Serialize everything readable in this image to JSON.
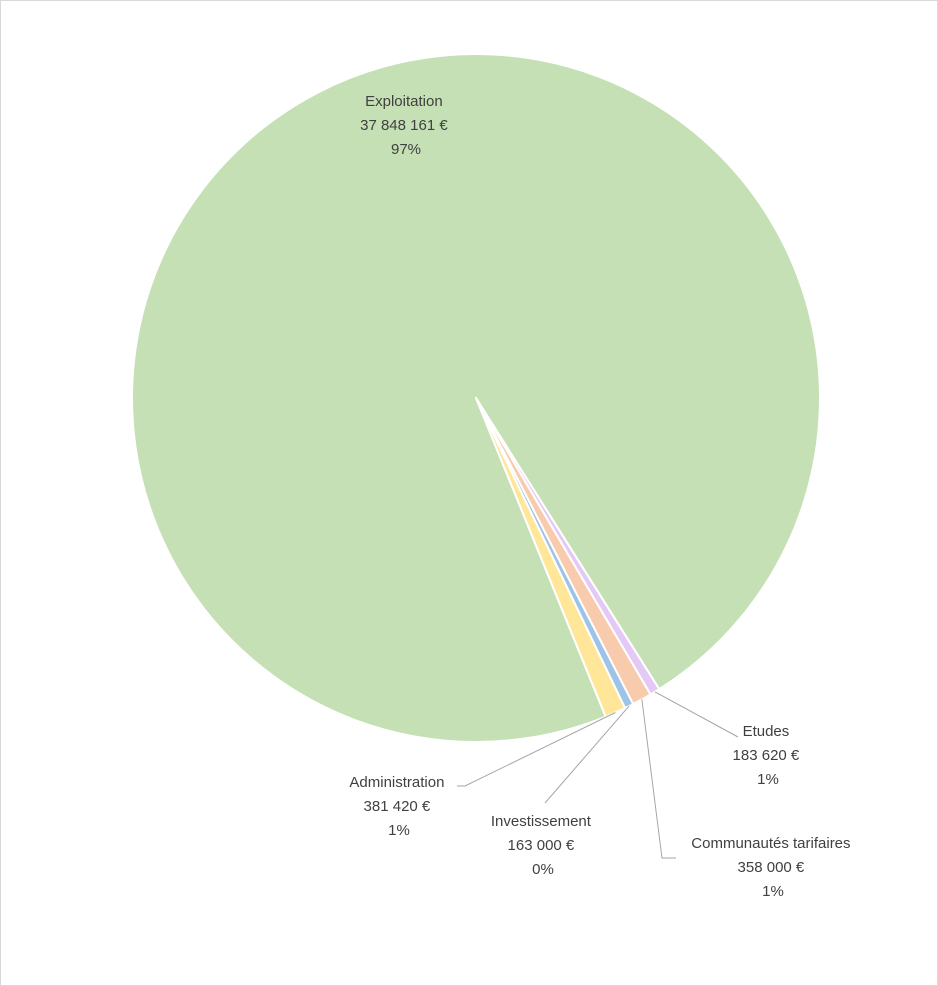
{
  "chart_data": {
    "type": "pie",
    "title": "",
    "colors": {
      "Exploitation": "#c5e0b4",
      "Etudes": "#e4c9f7",
      "Communautés tarifaires": "#f8cbad",
      "Investissement": "#9dc3e6",
      "Administration": "#ffe699",
      "slice_border": "#ffffff",
      "leader_line": "#a6a6a6",
      "label_text": "#404040"
    },
    "slices": [
      {
        "name": "Exploitation",
        "value": 37848161,
        "value_label": "37 848 161 €",
        "percent_label": "97%"
      },
      {
        "name": "Etudes",
        "value": 183620,
        "value_label": "183 620 €",
        "percent_label": "1%"
      },
      {
        "name": "Communautés tarifaires",
        "value": 358000,
        "value_label": "358 000 €",
        "percent_label": "1%"
      },
      {
        "name": "Investissement",
        "value": 163000,
        "value_label": "163 000 €",
        "percent_label": "0%"
      },
      {
        "name": "Administration",
        "value": 381420,
        "value_label": "381 420 €",
        "percent_label": "1%"
      }
    ]
  }
}
